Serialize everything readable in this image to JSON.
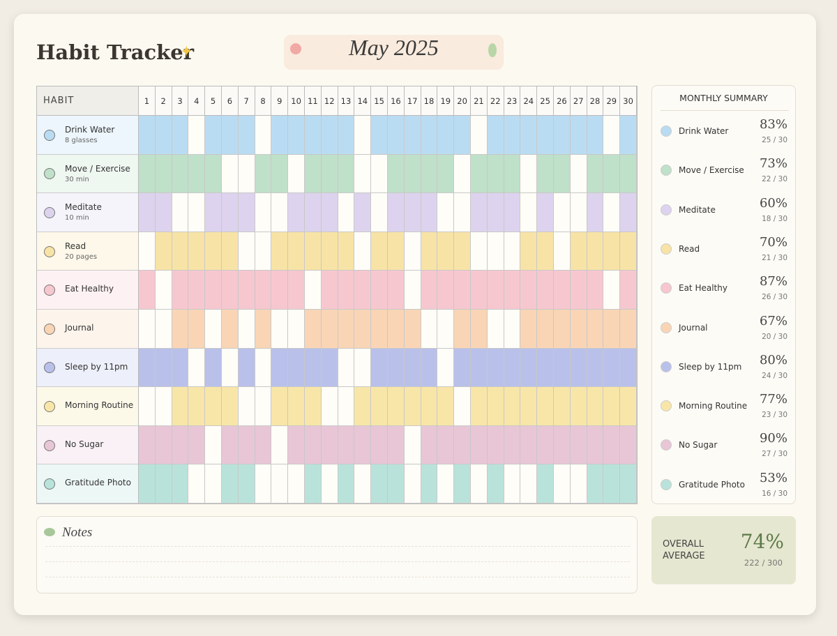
{
  "header": {
    "title": "Habit Tracker",
    "month": "May 2025"
  },
  "grid": {
    "column_header": "HABIT",
    "days": [
      1,
      2,
      3,
      4,
      5,
      6,
      7,
      8,
      9,
      10,
      11,
      12,
      13,
      14,
      15,
      16,
      17,
      18,
      19,
      20,
      21,
      22,
      23,
      24,
      25,
      26,
      27,
      28,
      29,
      30
    ]
  },
  "habits": [
    {
      "name": "Drink Water",
      "detail": "8 glasses",
      "color": "#b9dcf2",
      "percent": "83%",
      "count": "25 / 30",
      "days": [
        1,
        1,
        1,
        0,
        1,
        1,
        1,
        0,
        1,
        1,
        1,
        1,
        1,
        0,
        1,
        1,
        1,
        1,
        1,
        1,
        0,
        1,
        1,
        1,
        1,
        1,
        1,
        1,
        0,
        1
      ]
    },
    {
      "name": "Move / Exercise",
      "detail": "30 min",
      "color": "#bfe0c9",
      "percent": "73%",
      "count": "22 / 30",
      "days": [
        1,
        1,
        1,
        1,
        1,
        0,
        0,
        1,
        1,
        0,
        1,
        1,
        1,
        0,
        0,
        1,
        1,
        1,
        1,
        0,
        1,
        1,
        1,
        0,
        1,
        1,
        0,
        1,
        1,
        1
      ]
    },
    {
      "name": "Meditate",
      "detail": "10 min",
      "color": "#ddd3ee",
      "percent": "60%",
      "count": "18 / 30",
      "days": [
        1,
        1,
        0,
        0,
        1,
        1,
        1,
        0,
        0,
        1,
        1,
        1,
        0,
        1,
        0,
        1,
        1,
        1,
        0,
        0,
        1,
        1,
        1,
        0,
        1,
        0,
        0,
        1,
        0,
        1
      ]
    },
    {
      "name": "Read",
      "detail": "20 pages",
      "color": "#f8e3a6",
      "percent": "70%",
      "count": "21 / 30",
      "days": [
        0,
        1,
        1,
        1,
        1,
        1,
        0,
        0,
        1,
        1,
        1,
        1,
        1,
        0,
        1,
        1,
        0,
        1,
        1,
        1,
        0,
        0,
        0,
        1,
        1,
        0,
        1,
        1,
        1,
        1
      ]
    },
    {
      "name": "Eat Healthy",
      "color": "#f6c7cf",
      "percent": "87%",
      "count": "26 / 30",
      "days": [
        1,
        0,
        1,
        1,
        1,
        1,
        1,
        1,
        1,
        1,
        0,
        1,
        1,
        1,
        1,
        1,
        0,
        1,
        1,
        1,
        1,
        1,
        1,
        1,
        1,
        1,
        1,
        1,
        0,
        1
      ]
    },
    {
      "name": "Journal",
      "color": "#f9d5b5",
      "percent": "67%",
      "count": "20 / 30",
      "days": [
        0,
        0,
        1,
        1,
        0,
        1,
        0,
        1,
        0,
        0,
        1,
        1,
        1,
        1,
        1,
        1,
        1,
        0,
        0,
        1,
        1,
        0,
        0,
        1,
        1,
        1,
        1,
        1,
        1,
        1
      ]
    },
    {
      "name": "Sleep by 11pm",
      "color": "#b9c0ea",
      "percent": "80%",
      "count": "24 / 30",
      "days": [
        1,
        1,
        1,
        0,
        1,
        0,
        1,
        0,
        1,
        1,
        1,
        1,
        0,
        0,
        1,
        1,
        1,
        1,
        0,
        1,
        1,
        1,
        1,
        1,
        1,
        1,
        1,
        1,
        1,
        1
      ]
    },
    {
      "name": "Morning Routine",
      "color": "#f8e6a8",
      "percent": "77%",
      "count": "23 / 30",
      "days": [
        0,
        0,
        1,
        1,
        1,
        1,
        0,
        0,
        1,
        1,
        1,
        0,
        0,
        1,
        1,
        1,
        1,
        1,
        1,
        0,
        1,
        1,
        1,
        1,
        1,
        1,
        1,
        1,
        1,
        1
      ]
    },
    {
      "name": "No Sugar",
      "color": "#e8c6d6",
      "percent": "90%",
      "count": "27 / 30",
      "days": [
        1,
        1,
        1,
        1,
        0,
        1,
        1,
        1,
        0,
        1,
        1,
        1,
        1,
        1,
        1,
        1,
        0,
        1,
        1,
        1,
        1,
        1,
        1,
        1,
        1,
        1,
        1,
        1,
        1,
        1
      ]
    },
    {
      "name": "Gratitude Photo",
      "color": "#b9e3da",
      "percent": "53%",
      "count": "16 / 30",
      "days": [
        1,
        1,
        1,
        0,
        0,
        1,
        1,
        0,
        0,
        0,
        1,
        0,
        1,
        0,
        1,
        1,
        0,
        1,
        0,
        1,
        0,
        1,
        0,
        0,
        1,
        0,
        0,
        1,
        1,
        1
      ]
    }
  ],
  "summary": {
    "title": "MONTHLY SUMMARY"
  },
  "overall": {
    "label": "OVERALL AVERAGE",
    "percent": "74%",
    "count": "222 / 300"
  },
  "notes": {
    "title": "Notes"
  }
}
